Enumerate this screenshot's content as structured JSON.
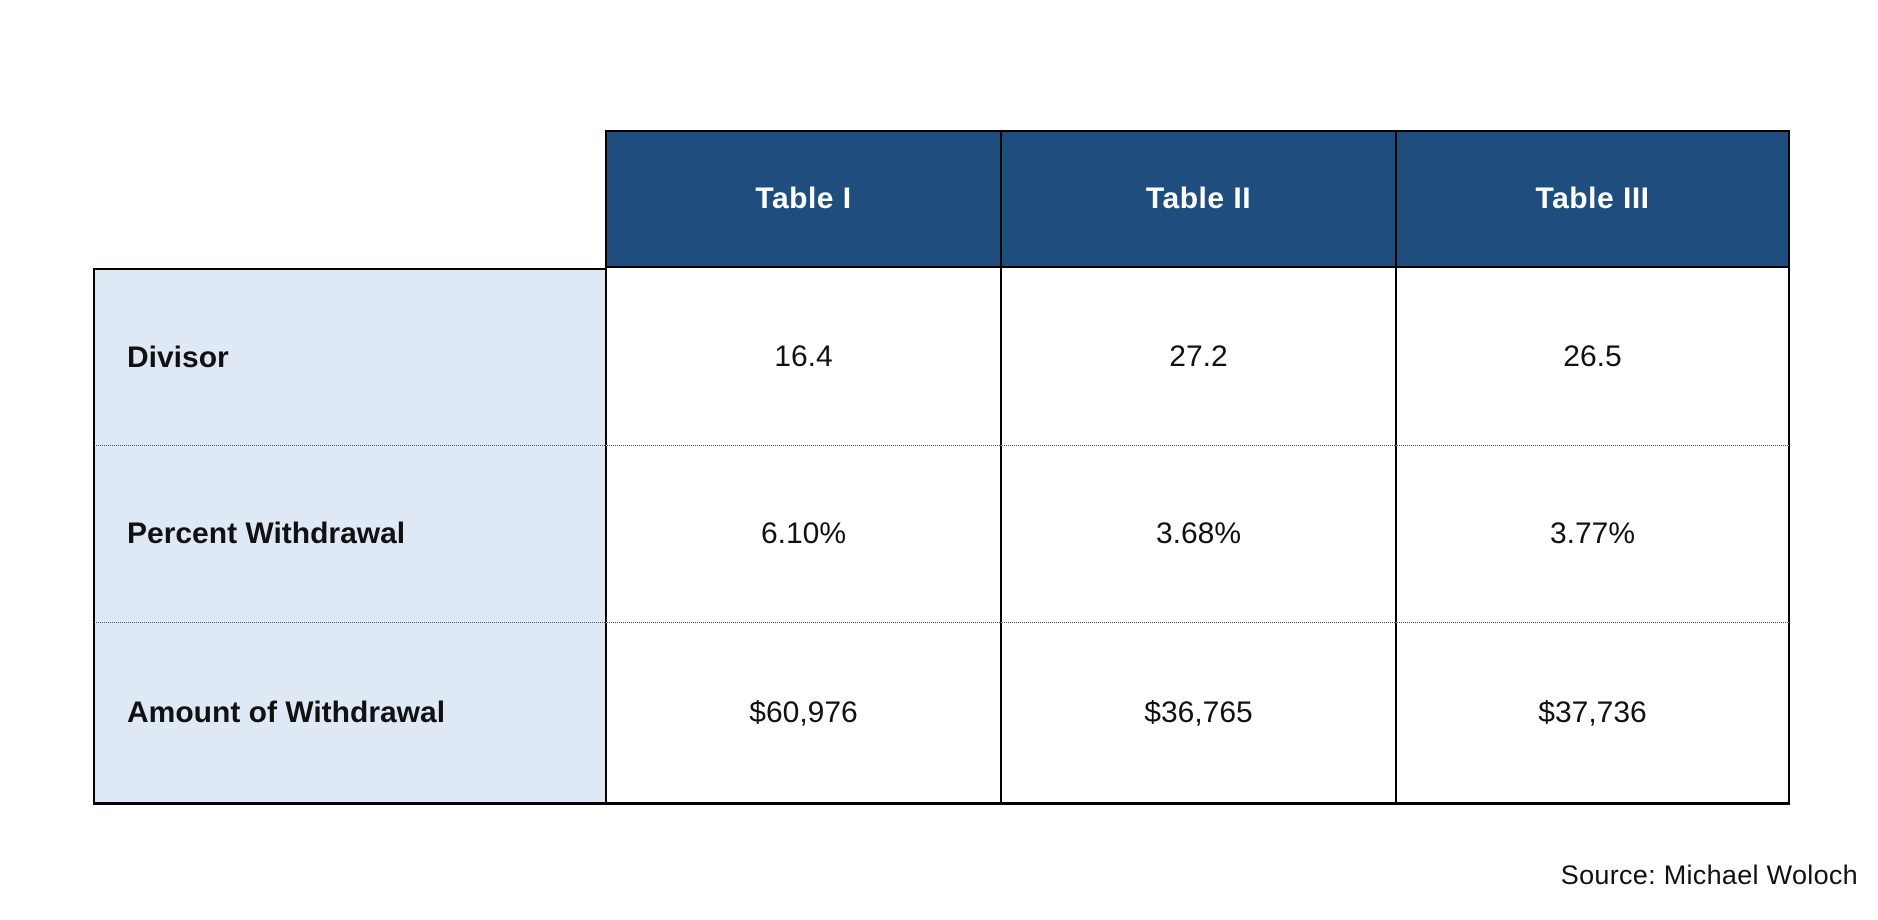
{
  "chart_data": {
    "type": "table",
    "columns": [
      "Table I",
      "Table II",
      "Table III"
    ],
    "rows": [
      {
        "label": "Divisor",
        "values": [
          "16.4",
          "27.2",
          "26.5"
        ]
      },
      {
        "label": "Percent Withdrawal",
        "values": [
          "6.10%",
          "3.68%",
          "3.77%"
        ]
      },
      {
        "label": "Amount of Withdrawal",
        "values": [
          "$60,976",
          "$36,765",
          "$37,736"
        ]
      }
    ],
    "layout_hints": {
      "header_row_position": "top, offset right of label column",
      "label_column_position": "left",
      "row_separators": "dotted",
      "outer_border": "solid black"
    }
  },
  "source_note": "Source: Michael Woloch",
  "colors": {
    "header_bg": "#1f4e7e",
    "header_text": "#ffffff",
    "label_bg": "#dfe9f5",
    "cell_bg": "#ffffff",
    "border": "#000000",
    "text": "#111111"
  }
}
